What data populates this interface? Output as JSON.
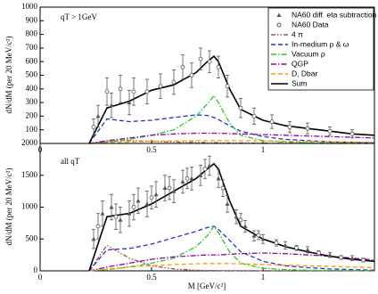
{
  "chart_data": [
    {
      "type": "line",
      "ylabel": "dN/dM (per 20 MeV/c²)",
      "annotation": "qT > 1GeV",
      "xlim": [
        0,
        1.5
      ],
      "xticks": [
        0,
        0.5,
        1
      ],
      "ylim": [
        0,
        1000
      ],
      "yticks": [
        100,
        200,
        300,
        400,
        500,
        600,
        700,
        800,
        900,
        1000
      ],
      "legend": "upper right",
      "points": [
        {
          "name": "NA60 diff. eta subtraction",
          "marker": "triangle",
          "color": "#555555",
          "x": [
            0.26,
            0.32,
            0.4
          ],
          "values": [
            200,
            280,
            300
          ],
          "errors": [
            80,
            90,
            90
          ]
        },
        {
          "name": "NA60 Data",
          "marker": "circle",
          "color": "#555555",
          "x": [
            0.24,
            0.3,
            0.36,
            0.42,
            0.48,
            0.54,
            0.6,
            0.64,
            0.68,
            0.72,
            0.76,
            0.8,
            0.84,
            0.9,
            0.96,
            1.04,
            1.12,
            1.2,
            1.3,
            1.4
          ],
          "values": [
            120,
            380,
            400,
            380,
            380,
            420,
            450,
            560,
            500,
            620,
            600,
            560,
            420,
            260,
            200,
            160,
            120,
            110,
            90,
            70
          ],
          "errors": [
            60,
            100,
            100,
            100,
            90,
            90,
            90,
            90,
            90,
            80,
            80,
            80,
            80,
            70,
            60,
            50,
            40,
            40,
            30,
            30
          ]
        }
      ],
      "x": [
        0.22,
        0.3,
        0.4,
        0.5,
        0.6,
        0.7,
        0.75,
        0.78,
        0.8,
        0.85,
        0.9,
        1.0,
        1.1,
        1.2,
        1.3,
        1.4,
        1.5
      ],
      "series": [
        {
          "name": "4 π",
          "color": "#a05050",
          "style": "dashdotdot",
          "values": [
            0,
            15,
            20,
            15,
            10,
            8,
            6,
            5,
            5,
            4,
            3,
            2,
            1,
            1,
            0,
            0,
            0
          ]
        },
        {
          "name": "In-medium ρ & ω",
          "color": "#2233cc",
          "style": "dashed",
          "values": [
            0,
            180,
            160,
            170,
            190,
            210,
            205,
            190,
            175,
            130,
            90,
            50,
            30,
            20,
            12,
            8,
            5
          ]
        },
        {
          "name": "Vacuum  ρ",
          "color": "#22cc22",
          "style": "dashdot",
          "values": [
            0,
            10,
            30,
            60,
            100,
            200,
            290,
            350,
            300,
            150,
            60,
            20,
            10,
            5,
            3,
            2,
            1
          ]
        },
        {
          "name": "QGP",
          "color": "#9900aa",
          "style": "dashdot",
          "values": [
            0,
            20,
            40,
            60,
            70,
            75,
            75,
            75,
            75,
            72,
            70,
            65,
            60,
            55,
            50,
            45,
            40
          ]
        },
        {
          "name": "D, Dbar",
          "color": "#ff9900",
          "style": "dashed",
          "values": [
            0,
            5,
            10,
            15,
            18,
            20,
            20,
            20,
            20,
            20,
            20,
            18,
            16,
            14,
            12,
            10,
            8
          ]
        },
        {
          "name": "Sum",
          "color": "#000000",
          "style": "solid",
          "values": [
            0,
            260,
            310,
            390,
            430,
            520,
            600,
            640,
            600,
            400,
            250,
            170,
            130,
            110,
            90,
            70,
            60
          ]
        }
      ]
    },
    {
      "type": "line",
      "ylabel": "dN/dM (per 20 MeV/c²)",
      "xlabel": "M [GeV/c²]",
      "annotation": "all qT",
      "xlim": [
        0,
        1.5
      ],
      "xticks": [
        0,
        0.5,
        1
      ],
      "ylim": [
        0,
        2000
      ],
      "yticks": [
        0,
        500,
        1000,
        1500,
        2000
      ],
      "points": [
        {
          "marker": "triangle",
          "color": "#555555",
          "x": [
            0.24,
            0.28,
            0.32,
            0.36,
            0.4,
            0.44,
            0.48,
            0.52,
            0.56,
            0.6,
            0.64,
            0.68,
            0.72,
            0.76,
            0.8,
            0.84,
            0.88,
            0.92,
            0.96,
            1.0,
            1.1,
            1.2,
            1.3,
            1.4
          ],
          "values": [
            500,
            900,
            1000,
            800,
            900,
            1100,
            1050,
            1200,
            1300,
            1250,
            1400,
            1450,
            1500,
            1650,
            1450,
            1050,
            850,
            700,
            550,
            500,
            400,
            330,
            250,
            200
          ],
          "errors": [
            150,
            200,
            200,
            200,
            200,
            200,
            200,
            200,
            200,
            180,
            180,
            180,
            160,
            150,
            140,
            130,
            110,
            90,
            80,
            70,
            60,
            50,
            40,
            40
          ]
        },
        {
          "marker": "circle",
          "color": "#555555",
          "x": [
            0.26,
            0.34,
            0.42,
            0.5,
            0.58,
            0.66,
            0.74,
            0.82,
            0.9,
            0.98,
            1.06,
            1.15,
            1.25,
            1.35,
            1.45
          ],
          "values": [
            700,
            850,
            1000,
            1150,
            1300,
            1450,
            1600,
            1300,
            800,
            560,
            440,
            360,
            280,
            210,
            170
          ],
          "errors": [
            200,
            200,
            200,
            180,
            180,
            160,
            150,
            130,
            100,
            70,
            50,
            40,
            35,
            30,
            30
          ]
        }
      ],
      "x": [
        0.22,
        0.3,
        0.4,
        0.5,
        0.6,
        0.7,
        0.75,
        0.78,
        0.8,
        0.85,
        0.9,
        1.0,
        1.1,
        1.2,
        1.3,
        1.4,
        1.5
      ],
      "series": [
        {
          "color": "#a05050",
          "style": "dashdotdot",
          "values": [
            0,
            400,
            200,
            80,
            30,
            10,
            6,
            4,
            3,
            2,
            1,
            0,
            0,
            0,
            0,
            0,
            0
          ]
        },
        {
          "color": "#2233cc",
          "style": "dashed",
          "values": [
            0,
            330,
            350,
            420,
            520,
            620,
            680,
            700,
            650,
            480,
            300,
            150,
            80,
            50,
            30,
            20,
            10
          ]
        },
        {
          "color": "#22cc22",
          "style": "dashdot",
          "values": [
            0,
            20,
            60,
            120,
            200,
            380,
            550,
            700,
            600,
            300,
            120,
            40,
            20,
            10,
            5,
            3,
            2
          ]
        },
        {
          "color": "#9900aa",
          "style": "dashdot",
          "values": [
            0,
            60,
            120,
            180,
            220,
            240,
            250,
            250,
            250,
            260,
            270,
            280,
            270,
            250,
            230,
            200,
            170
          ]
        },
        {
          "color": "#ff9900",
          "style": "dashed",
          "values": [
            0,
            30,
            60,
            80,
            100,
            110,
            115,
            115,
            115,
            115,
            110,
            100,
            90,
            80,
            70,
            60,
            50
          ]
        },
        {
          "color": "#000000",
          "style": "solid",
          "values": [
            0,
            850,
            900,
            1050,
            1250,
            1450,
            1600,
            1680,
            1600,
            1100,
            700,
            500,
            380,
            300,
            230,
            180,
            150
          ]
        }
      ]
    }
  ]
}
